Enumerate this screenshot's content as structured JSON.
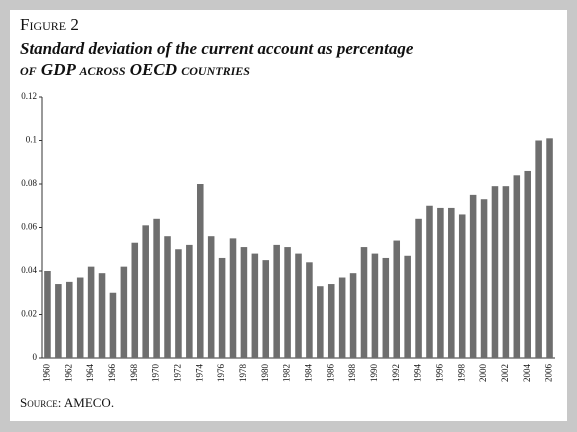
{
  "chart_data": {
    "type": "bar",
    "figure_label": "Figure 2",
    "title": "Standard deviation of the current account as percentage",
    "title_line2": "of GDP across OECD countries",
    "source": "Source: AMECO.",
    "categories": [
      "1960",
      null,
      "1962",
      null,
      "1964",
      null,
      "1966",
      null,
      "1968",
      null,
      "1970",
      null,
      "1972",
      null,
      "1974",
      null,
      "1976",
      null,
      "1978",
      null,
      "1980",
      null,
      "1982",
      null,
      "1984",
      null,
      "1986",
      null,
      "1988",
      null,
      "1990",
      null,
      "1992",
      null,
      "1994",
      null,
      "1996",
      null,
      "1998",
      null,
      "2000",
      null,
      "2002",
      null,
      "2004",
      null,
      "2006"
    ],
    "values": [
      0.04,
      0.034,
      0.035,
      0.037,
      0.042,
      0.039,
      0.03,
      0.042,
      0.053,
      0.061,
      0.064,
      0.056,
      0.05,
      0.052,
      0.08,
      0.056,
      0.046,
      0.055,
      0.051,
      0.048,
      0.045,
      0.052,
      0.051,
      0.048,
      0.044,
      0.033,
      0.034,
      0.037,
      0.039,
      0.051,
      0.048,
      0.046,
      0.054,
      0.047,
      0.064,
      0.07,
      0.069,
      0.069,
      0.066,
      0.075,
      0.073,
      0.079,
      0.079,
      0.084,
      0.086,
      0.1,
      0.101
    ],
    "color": "#6e6e6e",
    "ylim": [
      0,
      0.12
    ],
    "yticks": [
      0,
      0.02,
      0.04,
      0.06,
      0.08,
      0.1,
      0.12
    ],
    "grid": false
  }
}
